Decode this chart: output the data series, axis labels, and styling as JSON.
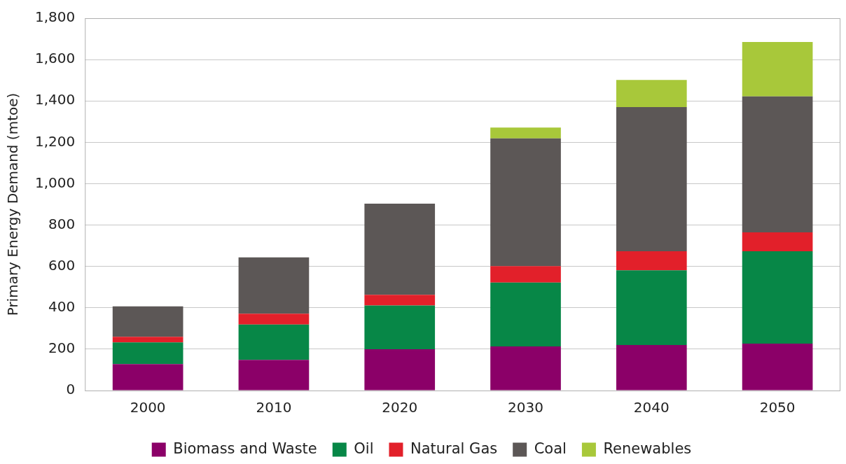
{
  "chart_data": {
    "type": "bar",
    "stacked": true,
    "ylabel": "Primary Energy Demand (mtoe)",
    "categories": [
      "2000",
      "2010",
      "2020",
      "2030",
      "2040",
      "2050"
    ],
    "series": [
      {
        "name": "Biomass and Waste",
        "color": "#8b0068",
        "values": [
          128,
          148,
          200,
          213,
          220,
          227
        ]
      },
      {
        "name": "Oil",
        "color": "#078747",
        "values": [
          105,
          171,
          211,
          309,
          361,
          446
        ]
      },
      {
        "name": "Natural Gas",
        "color": "#e2202a",
        "values": [
          27,
          52,
          52,
          79,
          92,
          92
        ]
      },
      {
        "name": "Coal",
        "color": "#5c5756",
        "values": [
          147,
          273,
          440,
          618,
          697,
          657
        ]
      },
      {
        "name": "Renewables",
        "color": "#a8c83a",
        "values": [
          0,
          0,
          0,
          52,
          131,
          263
        ]
      }
    ],
    "ylim": [
      0,
      1800
    ],
    "yticks": [
      0,
      200,
      400,
      600,
      800,
      {
        "value": 1000,
        "label": "1,000"
      },
      {
        "value": 1200,
        "label": "1,200"
      },
      {
        "value": 1400,
        "label": "1,400"
      },
      {
        "value": 1600,
        "label": "1,600"
      },
      {
        "value": 1800,
        "label": "1,800"
      }
    ],
    "grid": "y",
    "legend": "bottom"
  }
}
